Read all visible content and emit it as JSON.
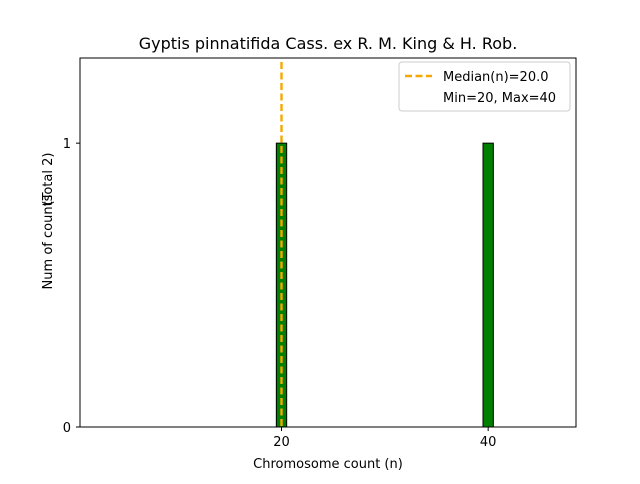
{
  "chart_data": {
    "type": "bar",
    "title": "Gyptis pinnatifida Cass. ex R. M. King & H. Rob.",
    "xlabel": "Chromosome count (n)",
    "ylabel": "Num of counts",
    "ylabel_note": "(Total 2)",
    "x_ticks": [
      20,
      40
    ],
    "x_tick_labels": [
      "20",
      "40"
    ],
    "y_ticks": [
      0,
      1
    ],
    "y_tick_labels": [
      "0",
      "1"
    ],
    "xlim": [
      0.5,
      48.5
    ],
    "ylim": [
      0,
      1.3
    ],
    "bins": [
      {
        "x_start": 19.5,
        "x_end": 20.5,
        "count": 1
      },
      {
        "x_start": 39.5,
        "x_end": 40.5,
        "count": 1
      }
    ],
    "bar_color": "#008000",
    "bar_edge_color": "#000000",
    "median": 20.0,
    "median_color": "#f5a800",
    "legend": {
      "position": "upper right",
      "entries": [
        "Median(n)=20.0",
        "Min=20, Max=40"
      ]
    }
  }
}
